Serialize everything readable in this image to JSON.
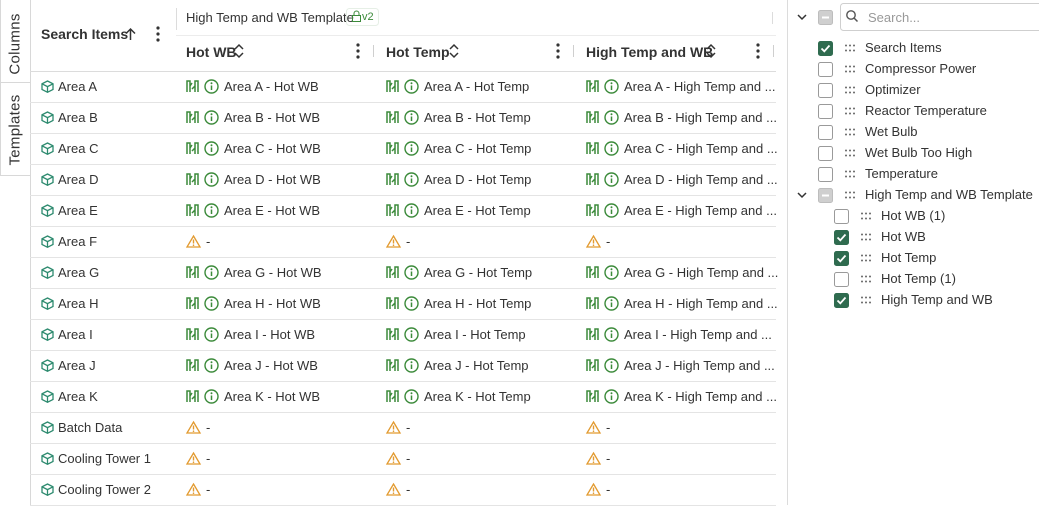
{
  "tabs": [
    "Columns",
    "Templates"
  ],
  "table": {
    "group_header": "High Temp and WB Template",
    "group_badge": "v2",
    "columns": [
      "Search Items",
      "Hot WB",
      "Hot Temp",
      "High Temp and WB"
    ],
    "rows": [
      [
        "Area A",
        "Area A - Hot WB",
        "Area A - Hot Temp",
        "Area A - High Temp and ..."
      ],
      [
        "Area B",
        "Area B - Hot WB",
        "Area B - Hot Temp",
        "Area B - High Temp and ..."
      ],
      [
        "Area C",
        "Area C - Hot WB",
        "Area C - Hot Temp",
        "Area C - High Temp and ..."
      ],
      [
        "Area D",
        "Area D - Hot WB",
        "Area D - Hot Temp",
        "Area D - High Temp and ..."
      ],
      [
        "Area E",
        "Area E - Hot WB",
        "Area E - Hot Temp",
        "Area E - High Temp and ..."
      ],
      [
        "Area F",
        "-",
        "-",
        "-"
      ],
      [
        "Area G",
        "Area G - Hot WB",
        "Area G - Hot Temp",
        "Area G - High Temp and ..."
      ],
      [
        "Area H",
        "Area H - Hot WB",
        "Area H - Hot Temp",
        "Area H - High Temp and ..."
      ],
      [
        "Area I",
        "Area I - Hot WB",
        "Area I - Hot Temp",
        "Area I - High Temp and ..."
      ],
      [
        "Area J",
        "Area J - Hot WB",
        "Area J - Hot Temp",
        "Area J - High Temp and ..."
      ],
      [
        "Area K",
        "Area K - Hot WB",
        "Area K - Hot Temp",
        "Area K - High Temp and ..."
      ],
      [
        "Batch Data",
        "-",
        "-",
        "-"
      ],
      [
        "Cooling Tower 1",
        "-",
        "-",
        "-"
      ],
      [
        "Cooling Tower 2",
        "-",
        "-",
        "-"
      ]
    ]
  },
  "panel": {
    "select_all": "partial",
    "search_placeholder": "Search...",
    "items": [
      {
        "label": "Search Items",
        "state": "checked"
      },
      {
        "label": "Compressor Power",
        "state": "unchecked"
      },
      {
        "label": "Optimizer",
        "state": "unchecked"
      },
      {
        "label": "Reactor Temperature",
        "state": "unchecked"
      },
      {
        "label": "Wet Bulb",
        "state": "unchecked"
      },
      {
        "label": "Wet Bulb Too High",
        "state": "unchecked"
      },
      {
        "label": "Temperature",
        "state": "unchecked"
      },
      {
        "label": "High Temp and WB Template",
        "state": "partial",
        "children": [
          {
            "label": "Hot WB (1)",
            "state": "unchecked"
          },
          {
            "label": "Hot WB",
            "state": "checked"
          },
          {
            "label": "Hot Temp",
            "state": "checked"
          },
          {
            "label": "Hot Temp (1)",
            "state": "unchecked"
          },
          {
            "label": "High Temp and WB",
            "state": "checked"
          }
        ]
      }
    ]
  }
}
